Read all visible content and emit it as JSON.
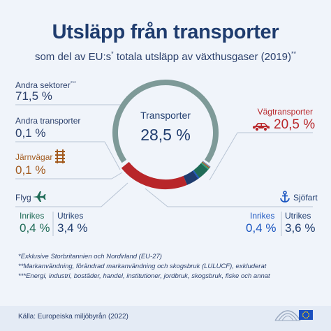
{
  "title": "Utsläpp från transporter",
  "subtitle": {
    "before": "som del av EU:s",
    "star": "*",
    "after": " totala utsläpp av växthusgaser (2019)",
    "stars": "**"
  },
  "labels": {
    "other_sectors": {
      "name": "Andra sektorer",
      "mark": "***",
      "value": "71,5 %"
    },
    "other_transport": {
      "name": "Andra transporter",
      "value": "0,1 %"
    },
    "rail": {
      "name": "Järnvägar",
      "value": "0,1 %"
    },
    "aviation": {
      "name": "Flyg",
      "domestic_label": "Inrikes",
      "domestic_value": "0,4 %",
      "intl_label": "Utrikes",
      "intl_value": "3,4 %"
    },
    "road": {
      "name": "Vägtransporter",
      "value": "20,5 %"
    },
    "shipping": {
      "name": "Sjöfart",
      "domestic_label": "Inrikes",
      "domestic_value": "0,4 %",
      "intl_label": "Utrikes",
      "intl_value": "3,6 %"
    },
    "center": {
      "name": "Transporter",
      "value": "28,5 %"
    }
  },
  "notes": [
    "*Exklusive Storbritannien och Nordirland (EU-27)",
    "**Markanvändning, förändrad markanvändning och skogsbruk (LULUCF), exkluderat",
    "***Energi, industri, bostäder, handel, institutioner, jordbruk, skogsbruk, fiske och annat"
  ],
  "source": "Källa: Europeiska miljöbyrån (2022)",
  "colors": {
    "other_sectors": "#7e9a98",
    "road": "#b8262a",
    "shipping_intl": "#1f3c6e",
    "shipping_domestic": "#1a55c0",
    "aviation_intl": "#1f6b57",
    "aviation_domestic": "#2fa07c",
    "rail": "#a25a1e",
    "other_transport": "#7c8aa8"
  },
  "icons": [
    "car-icon",
    "rail-icon",
    "plane-icon",
    "anchor-icon",
    "parliament-logo",
    "eu-flag-logo"
  ],
  "chart_data": {
    "type": "pie",
    "variant": "donut",
    "title": "Utsläpp från transporter",
    "unit": "%",
    "slices": [
      {
        "name": "Andra sektorer",
        "value": 71.5,
        "color": "#7e9a98"
      },
      {
        "name": "Vägtransporter",
        "value": 20.5,
        "color": "#b8262a"
      },
      {
        "name": "Sjöfart Utrikes",
        "value": 3.6,
        "color": "#1f3c6e"
      },
      {
        "name": "Sjöfart Inrikes",
        "value": 0.4,
        "color": "#1a55c0"
      },
      {
        "name": "Flyg Utrikes",
        "value": 3.4,
        "color": "#1f6b57"
      },
      {
        "name": "Flyg Inrikes",
        "value": 0.4,
        "color": "#2fa07c"
      },
      {
        "name": "Järnvägar",
        "value": 0.1,
        "color": "#a25a1e"
      },
      {
        "name": "Andra transporter",
        "value": 0.1,
        "color": "#7c8aa8"
      }
    ],
    "total_transport": {
      "name": "Transporter",
      "value": 28.5
    }
  }
}
